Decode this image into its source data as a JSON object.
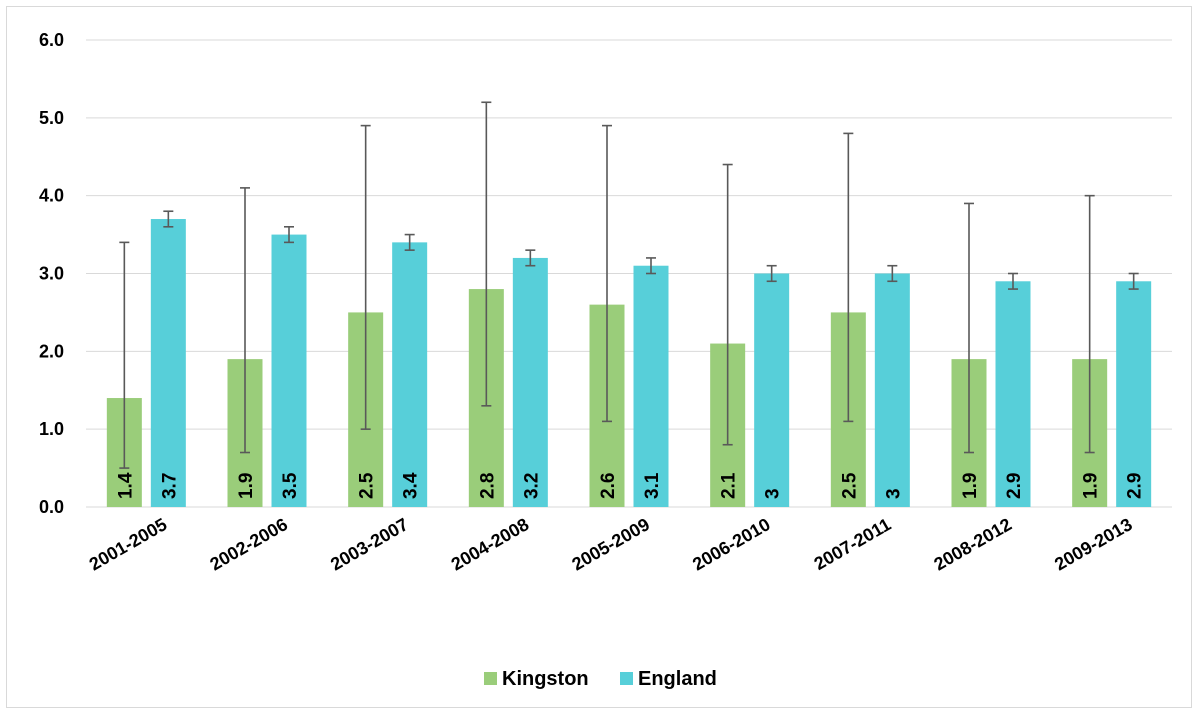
{
  "chart_data": {
    "type": "bar",
    "categories": [
      "2001-2005",
      "2002-2006",
      "2003-2007",
      "2004-2008",
      "2005-2009",
      "2006-2010",
      "2007-2011",
      "2008-2012",
      "2009-2013"
    ],
    "series": [
      {
        "name": "Kingston",
        "color": "#9acd7a",
        "values": [
          1.4,
          1.9,
          2.5,
          2.8,
          2.6,
          2.1,
          2.5,
          1.9,
          1.9
        ],
        "labels": [
          "1.4",
          "1.9",
          "2.5",
          "2.8",
          "2.6",
          "2.1",
          "2.5",
          "1.9",
          "1.9"
        ],
        "error_low": [
          0.5,
          0.7,
          1.0,
          1.3,
          1.1,
          0.8,
          1.1,
          0.7,
          0.7
        ],
        "error_high": [
          3.4,
          4.1,
          4.9,
          5.2,
          4.9,
          4.4,
          4.8,
          3.9,
          4.0
        ]
      },
      {
        "name": "England",
        "color": "#57cfd9",
        "values": [
          3.7,
          3.5,
          3.4,
          3.2,
          3.1,
          3.0,
          3.0,
          2.9,
          2.9
        ],
        "labels": [
          "3.7",
          "3.5",
          "3.4",
          "3.2",
          "3.1",
          "3",
          "3",
          "2.9",
          "2.9"
        ],
        "error_low": [
          3.6,
          3.4,
          3.3,
          3.1,
          3.0,
          2.9,
          2.9,
          2.8,
          2.8
        ],
        "error_high": [
          3.8,
          3.6,
          3.5,
          3.3,
          3.2,
          3.1,
          3.1,
          3.0,
          3.0
        ]
      }
    ],
    "ylim": [
      0,
      6
    ],
    "yticks": [
      "0.0",
      "1.0",
      "2.0",
      "3.0",
      "4.0",
      "5.0",
      "6.0"
    ],
    "ytick_values": [
      0,
      1,
      2,
      3,
      4,
      5,
      6
    ],
    "title": "",
    "xlabel": "",
    "ylabel": "",
    "grid": true,
    "legend_position": "bottom-center",
    "colors": {
      "gridline": "#d9d9d9",
      "error_bar": "#595959"
    }
  }
}
